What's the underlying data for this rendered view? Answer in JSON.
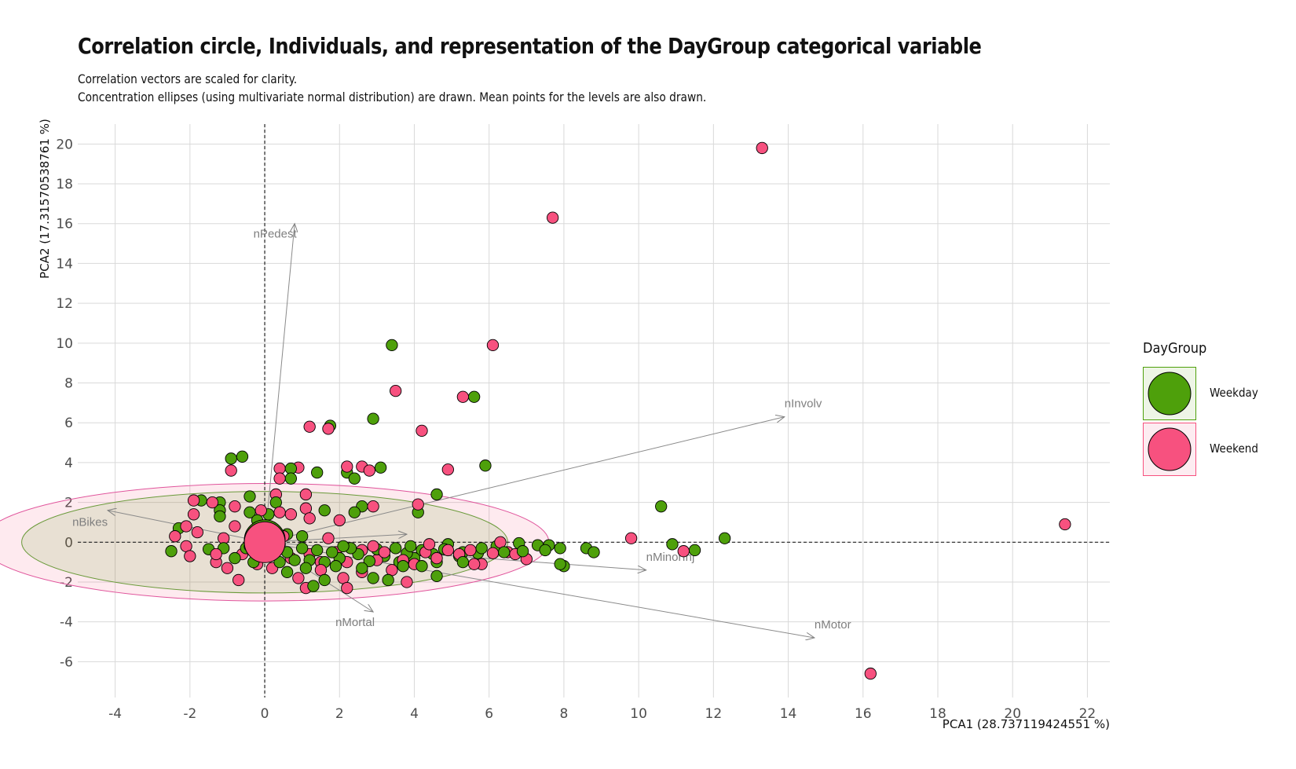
{
  "title": "Correlation circle, Individuals, and representation of the DayGroup categorical variable",
  "subtitle_lines": [
    "Correlation vectors are scaled for clarity.",
    "Concentration ellipses (using multivariate normal distribution) are drawn. Mean points for the levels are also drawn."
  ],
  "chart_data": {
    "type": "scatter",
    "xlabel": "PCA1 (28.737119424551 %)",
    "ylabel": "PCA2 (17.31570538761 %)",
    "xlim": [
      -5,
      22.6
    ],
    "ylim": [
      -7.8,
      21
    ],
    "x_ticks": [
      -4,
      -2,
      0,
      2,
      4,
      6,
      8,
      10,
      12,
      14,
      16,
      18,
      20,
      22
    ],
    "y_ticks": [
      -6,
      -4,
      -2,
      0,
      2,
      4,
      6,
      8,
      10,
      12,
      14,
      16,
      18,
      20
    ],
    "grid": true,
    "reference_lines": {
      "x": 0,
      "y": 0,
      "style": "dashed"
    },
    "legend": {
      "title": "DayGroup",
      "placement": "right",
      "entries": [
        {
          "name": "Weekday",
          "color": "#4ea00b"
        },
        {
          "name": "Weekend",
          "color": "#f7517f"
        }
      ]
    },
    "variable_vectors": [
      {
        "name": "nPedest",
        "x": 0.8,
        "y": 16.0
      },
      {
        "name": "nInvolv",
        "x": 13.9,
        "y": 6.3
      },
      {
        "name": "nBikes",
        "x": -4.2,
        "y": 1.6
      },
      {
        "name": "nMinorInj",
        "x": 10.2,
        "y": -1.4
      },
      {
        "name": "nMotor",
        "x": 14.7,
        "y": -4.8
      },
      {
        "name": "nMortal",
        "x": 2.9,
        "y": -3.5
      },
      {
        "name": "",
        "x": 3.8,
        "y": 0.4
      }
    ],
    "ellipses": [
      {
        "group": "Weekday",
        "center": [
          0,
          0
        ],
        "rx": 6.5,
        "ry": 2.55
      },
      {
        "group": "Weekend",
        "center": [
          0,
          0
        ],
        "rx": 7.6,
        "ry": 2.95
      }
    ],
    "mean_points": [
      {
        "group": "Weekday",
        "x": 0.0,
        "y": 0.1
      },
      {
        "group": "Weekend",
        "x": 0.0,
        "y": 0.0
      }
    ],
    "series": [
      {
        "name": "Weekday",
        "points": [
          [
            3.4,
            9.9
          ],
          [
            5.6,
            7.3
          ],
          [
            2.9,
            6.2
          ],
          [
            1.75,
            5.85
          ],
          [
            -0.9,
            4.2
          ],
          [
            -0.6,
            4.3
          ],
          [
            5.9,
            3.85
          ],
          [
            3.1,
            3.75
          ],
          [
            2.2,
            3.5
          ],
          [
            1.4,
            3.5
          ],
          [
            2.4,
            3.2
          ],
          [
            0.7,
            3.7
          ],
          [
            0.7,
            3.2
          ],
          [
            4.6,
            2.4
          ],
          [
            -0.4,
            2.3
          ],
          [
            -1.7,
            2.1
          ],
          [
            -1.2,
            2.0
          ],
          [
            -1.2,
            1.6
          ],
          [
            0.3,
            2.0
          ],
          [
            -0.4,
            1.5
          ],
          [
            0.1,
            1.4
          ],
          [
            2.6,
            1.8
          ],
          [
            2.4,
            1.5
          ],
          [
            1.6,
            1.6
          ],
          [
            4.1,
            1.5
          ],
          [
            -1.2,
            1.3
          ],
          [
            -0.2,
            1.1
          ],
          [
            -2.3,
            0.7
          ],
          [
            0.6,
            0.4
          ],
          [
            1.0,
            0.3
          ],
          [
            10.6,
            1.8
          ],
          [
            12.3,
            0.2
          ],
          [
            10.9,
            -0.1
          ],
          [
            11.5,
            -0.4
          ],
          [
            8.6,
            -0.3
          ],
          [
            8.8,
            -0.5
          ],
          [
            7.9,
            -0.3
          ],
          [
            7.6,
            -0.15
          ],
          [
            7.3,
            -0.15
          ],
          [
            6.8,
            -0.05
          ],
          [
            6.2,
            -0.2
          ],
          [
            5.7,
            -0.55
          ],
          [
            5.3,
            -0.5
          ],
          [
            5.2,
            -0.7
          ],
          [
            4.9,
            -0.1
          ],
          [
            4.8,
            -0.35
          ],
          [
            4.5,
            -0.6
          ],
          [
            4.6,
            -1.0
          ],
          [
            4.2,
            -0.4
          ],
          [
            4.0,
            -0.8
          ],
          [
            3.8,
            -0.55
          ],
          [
            3.6,
            -1.0
          ],
          [
            3.5,
            -0.3
          ],
          [
            3.2,
            -0.7
          ],
          [
            3.0,
            -0.35
          ],
          [
            2.8,
            -0.95
          ],
          [
            2.5,
            -0.6
          ],
          [
            2.3,
            -0.3
          ],
          [
            2.0,
            -0.8
          ],
          [
            1.8,
            -0.5
          ],
          [
            1.6,
            -1.0
          ],
          [
            1.4,
            -0.4
          ],
          [
            1.2,
            -0.9
          ],
          [
            1.0,
            -0.3
          ],
          [
            0.8,
            -0.9
          ],
          [
            0.6,
            -0.5
          ],
          [
            0.4,
            -1.0
          ],
          [
            0.2,
            -0.45
          ],
          [
            -0.1,
            -0.6
          ],
          [
            -0.3,
            -1.0
          ],
          [
            -0.5,
            -0.3
          ],
          [
            -0.8,
            -0.8
          ],
          [
            -1.1,
            -0.3
          ],
          [
            -1.5,
            -0.35
          ],
          [
            -2.5,
            -0.45
          ],
          [
            1.3,
            -2.2
          ],
          [
            1.6,
            -1.9
          ],
          [
            2.9,
            -1.8
          ],
          [
            3.3,
            -1.9
          ],
          [
            4.6,
            -1.7
          ],
          [
            5.3,
            -1.0
          ],
          [
            8.0,
            -1.2
          ],
          [
            7.9,
            -1.1
          ],
          [
            7.5,
            -0.4
          ],
          [
            6.9,
            -0.45
          ],
          [
            6.4,
            -0.5
          ],
          [
            1.1,
            -1.3
          ],
          [
            0.6,
            -1.5
          ],
          [
            2.6,
            -1.3
          ],
          [
            4.2,
            -1.2
          ],
          [
            3.7,
            -1.2
          ],
          [
            1.9,
            -1.2
          ],
          [
            0.4,
            -0.1
          ],
          [
            2.1,
            -0.2
          ],
          [
            3.9,
            -0.2
          ],
          [
            5.8,
            -0.3
          ]
        ]
      },
      {
        "name": "Weekend",
        "points": [
          [
            13.3,
            19.8
          ],
          [
            7.7,
            16.3
          ],
          [
            6.1,
            9.9
          ],
          [
            3.5,
            7.6
          ],
          [
            5.3,
            7.3
          ],
          [
            1.2,
            5.8
          ],
          [
            1.7,
            5.7
          ],
          [
            4.2,
            5.6
          ],
          [
            4.9,
            3.65
          ],
          [
            0.4,
            3.7
          ],
          [
            0.9,
            3.75
          ],
          [
            2.2,
            3.8
          ],
          [
            2.6,
            3.8
          ],
          [
            2.8,
            3.6
          ],
          [
            -0.9,
            3.6
          ],
          [
            0.4,
            3.2
          ],
          [
            0.3,
            2.4
          ],
          [
            1.1,
            2.4
          ],
          [
            -1.9,
            2.1
          ],
          [
            -1.4,
            2.0
          ],
          [
            -0.8,
            1.8
          ],
          [
            -0.1,
            1.6
          ],
          [
            0.4,
            1.5
          ],
          [
            0.7,
            1.4
          ],
          [
            1.1,
            1.7
          ],
          [
            1.2,
            1.2
          ],
          [
            2.0,
            1.1
          ],
          [
            2.9,
            1.8
          ],
          [
            4.1,
            1.9
          ],
          [
            -1.9,
            1.4
          ],
          [
            -0.8,
            0.8
          ],
          [
            -2.1,
            0.8
          ],
          [
            -1.8,
            0.5
          ],
          [
            -1.1,
            0.2
          ],
          [
            -2.4,
            0.3
          ],
          [
            -2.1,
            -0.2
          ],
          [
            -2.0,
            -0.7
          ],
          [
            -1.3,
            -1.0
          ],
          [
            -1.0,
            -1.3
          ],
          [
            -0.6,
            -0.6
          ],
          [
            -0.7,
            -1.9
          ],
          [
            -0.2,
            -1.1
          ],
          [
            0.2,
            -1.3
          ],
          [
            0.7,
            -0.8
          ],
          [
            1.2,
            -0.6
          ],
          [
            1.5,
            -1.0
          ],
          [
            1.9,
            -0.5
          ],
          [
            2.2,
            -1.0
          ],
          [
            2.1,
            -1.8
          ],
          [
            2.2,
            -2.3
          ],
          [
            1.1,
            -2.3
          ],
          [
            3.8,
            -2.0
          ],
          [
            3.4,
            -1.4
          ],
          [
            3.0,
            -0.9
          ],
          [
            2.6,
            -0.4
          ],
          [
            3.2,
            -0.5
          ],
          [
            3.7,
            -0.9
          ],
          [
            4.3,
            -0.5
          ],
          [
            4.6,
            -0.8
          ],
          [
            4.9,
            -0.4
          ],
          [
            5.2,
            -0.6
          ],
          [
            5.5,
            -0.4
          ],
          [
            5.8,
            -1.1
          ],
          [
            6.1,
            -0.55
          ],
          [
            6.3,
            0.0
          ],
          [
            6.5,
            -0.5
          ],
          [
            6.7,
            -0.6
          ],
          [
            7.0,
            -0.85
          ],
          [
            9.8,
            0.2
          ],
          [
            11.2,
            -0.45
          ],
          [
            21.4,
            0.9
          ],
          [
            16.2,
            -6.6
          ],
          [
            5.6,
            -1.1
          ],
          [
            0.9,
            -1.8
          ],
          [
            1.5,
            -1.4
          ],
          [
            2.6,
            -1.5
          ],
          [
            4.0,
            -1.1
          ],
          [
            0.2,
            0.6
          ],
          [
            0.5,
            0.3
          ],
          [
            -0.4,
            -0.2
          ],
          [
            1.7,
            0.2
          ],
          [
            2.9,
            -0.2
          ],
          [
            4.4,
            -0.1
          ],
          [
            -1.3,
            -0.6
          ]
        ]
      }
    ]
  }
}
